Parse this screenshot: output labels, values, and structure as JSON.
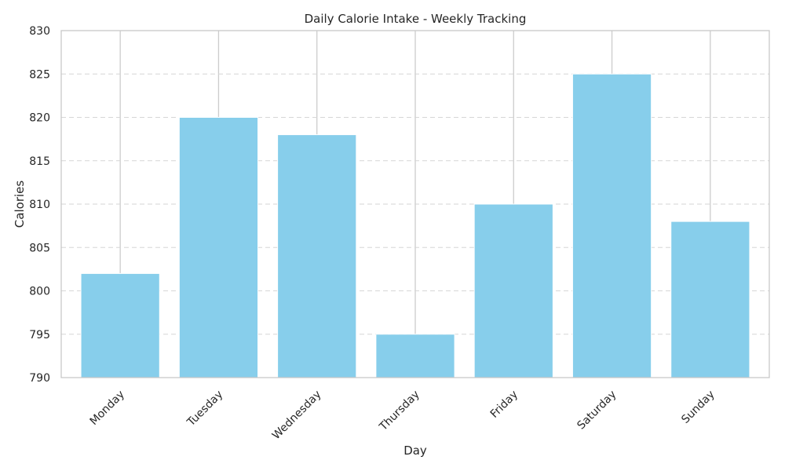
{
  "chart_data": {
    "type": "bar",
    "title": "Daily Calorie Intake - Weekly Tracking",
    "xlabel": "Day",
    "ylabel": "Calories",
    "categories": [
      "Monday",
      "Tuesday",
      "Wednesday",
      "Thursday",
      "Friday",
      "Saturday",
      "Sunday"
    ],
    "values": [
      802,
      820,
      818,
      795,
      810,
      825,
      808
    ],
    "ylim": [
      790,
      830
    ],
    "yticks": [
      790,
      795,
      800,
      805,
      810,
      815,
      820,
      825,
      830
    ],
    "grid": "on",
    "legend": "none",
    "bar_color": "#87ceeb"
  }
}
